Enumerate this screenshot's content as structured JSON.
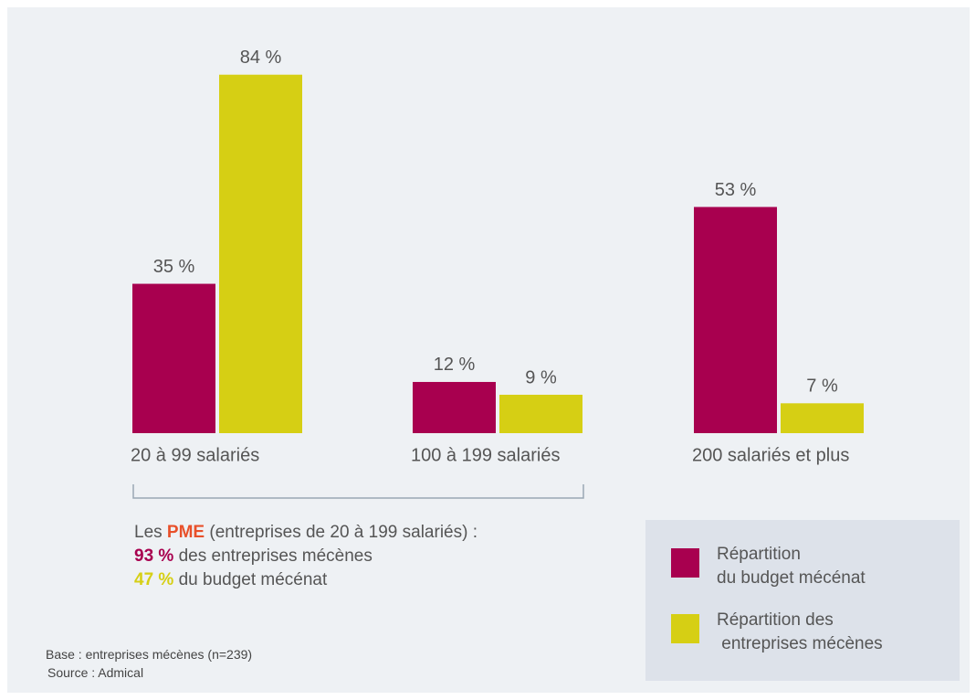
{
  "chart_data": {
    "type": "bar",
    "categories": [
      "20 à 99 salariés",
      "100 à 199 salariés",
      "200 salariés et plus"
    ],
    "series": [
      {
        "name": "Répartition\ndu budget mécénat",
        "color": "#a8004f",
        "values": [
          35,
          12,
          53
        ],
        "value_labels": [
          "35 %",
          "12 %",
          "53 %"
        ]
      },
      {
        "name": "Répartition des\n entreprises mécènes",
        "color": "#d6cf14",
        "values": [
          84,
          9,
          7
        ],
        "value_labels": [
          "84 %",
          "9 %",
          "7 %"
        ]
      }
    ],
    "annotation": {
      "line1": {
        "prefix": "Les ",
        "highlight": "PME",
        "rest": " (entreprises de 20 à 199 salariés) :"
      },
      "line2": {
        "highlight": "93 %",
        "rest": " des entreprises mécènes"
      },
      "line3": {
        "highlight": "47 %",
        "rest": " du budget mécénat"
      }
    },
    "notes": [
      "Base : entreprises mécènes (n=239)",
      "Source : Admical"
    ]
  }
}
